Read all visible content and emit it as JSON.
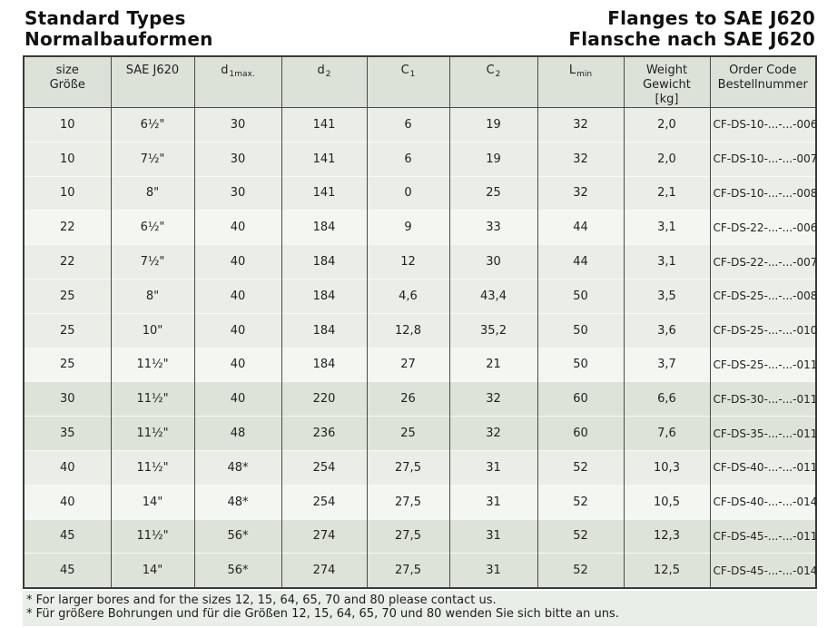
{
  "header": {
    "left": {
      "line1": "Standard Types",
      "line2": "Normalbauformen"
    },
    "right": {
      "line1": "Flanges to SAE J620",
      "line2": "Flansche nach SAE J620"
    }
  },
  "table": {
    "columns": [
      {
        "id": "size",
        "label_lines": [
          "size",
          "Größe"
        ]
      },
      {
        "id": "sae",
        "label_lines": [
          "SAE J620"
        ]
      },
      {
        "id": "d1max",
        "base": "d",
        "sub": "1max."
      },
      {
        "id": "d2",
        "base": "d",
        "sub": "2"
      },
      {
        "id": "c1",
        "base": "C",
        "sub": "1"
      },
      {
        "id": "c2",
        "base": "C",
        "sub": "2"
      },
      {
        "id": "lmin",
        "base": "L",
        "sub": "min"
      },
      {
        "id": "weight",
        "label_lines": [
          "Weight",
          "Gewicht",
          "[kg]"
        ]
      },
      {
        "id": "order",
        "label_lines": [
          "Order Code",
          "Bestellnummer"
        ]
      }
    ],
    "rows": [
      {
        "shade": "a",
        "cells": [
          "10",
          "6½\"",
          "30",
          "141",
          "6",
          "19",
          "32",
          "2,0",
          "CF-DS-10-...-...-006"
        ]
      },
      {
        "shade": "a",
        "cells": [
          "10",
          "7½\"",
          "30",
          "141",
          "6",
          "19",
          "32",
          "2,0",
          "CF-DS-10-...-...-007"
        ]
      },
      {
        "shade": "a",
        "cells": [
          "10",
          "8\"",
          "30",
          "141",
          "0",
          "25",
          "32",
          "2,1",
          "CF-DS-10-...-...-008"
        ]
      },
      {
        "shade": "b",
        "cells": [
          "22",
          "6½\"",
          "40",
          "184",
          "9",
          "33",
          "44",
          "3,1",
          "CF-DS-22-...-...-006"
        ]
      },
      {
        "shade": "a",
        "cells": [
          "22",
          "7½\"",
          "40",
          "184",
          "12",
          "30",
          "44",
          "3,1",
          "CF-DS-22-...-...-007"
        ]
      },
      {
        "shade": "a",
        "cells": [
          "25",
          "8\"",
          "40",
          "184",
          "4,6",
          "43,4",
          "50",
          "3,5",
          "CF-DS-25-...-...-008"
        ]
      },
      {
        "shade": "a",
        "cells": [
          "25",
          "10\"",
          "40",
          "184",
          "12,8",
          "35,2",
          "50",
          "3,6",
          "CF-DS-25-...-...-010"
        ]
      },
      {
        "shade": "b",
        "cells": [
          "25",
          "11½\"",
          "40",
          "184",
          "27",
          "21",
          "50",
          "3,7",
          "CF-DS-25-...-...-011"
        ]
      },
      {
        "shade": "c",
        "cells": [
          "30",
          "11½\"",
          "40",
          "220",
          "26",
          "32",
          "60",
          "6,6",
          "CF-DS-30-...-...-011"
        ]
      },
      {
        "shade": "c",
        "cells": [
          "35",
          "11½\"",
          "48",
          "236",
          "25",
          "32",
          "60",
          "7,6",
          "CF-DS-35-...-...-011"
        ]
      },
      {
        "shade": "a",
        "cells": [
          "40",
          "11½\"",
          "48*",
          "254",
          "27,5",
          "31",
          "52",
          "10,3",
          "CF-DS-40-...-...-011"
        ]
      },
      {
        "shade": "b",
        "cells": [
          "40",
          "14\"",
          "48*",
          "254",
          "27,5",
          "31",
          "52",
          "10,5",
          "CF-DS-40-...-...-014"
        ]
      },
      {
        "shade": "c",
        "cells": [
          "45",
          "11½\"",
          "56*",
          "274",
          "27,5",
          "31",
          "52",
          "12,3",
          "CF-DS-45-...-...-011"
        ]
      },
      {
        "shade": "c",
        "cells": [
          "45",
          "14\"",
          "56*",
          "274",
          "27,5",
          "31",
          "52",
          "12,5",
          "CF-DS-45-...-...-014"
        ]
      }
    ]
  },
  "footnotes": [
    "* For larger bores and for the sizes 12, 15, 64, 65, 70 and 80 please contact us.",
    "* Für größere Bohrungen und für die Größen 12, 15, 64, 65, 70 und 80 wenden Sie sich bitte an uns."
  ],
  "colors": {
    "header_bg": "#dce2d8",
    "row_light": "#eaeee7",
    "row_lighter": "#f4f6f2",
    "row_dark": "#dde3d8",
    "notes_bg": "#e9eee8",
    "border_dark": "#4b4b4b",
    "row_divider": "#f7f9f6"
  }
}
